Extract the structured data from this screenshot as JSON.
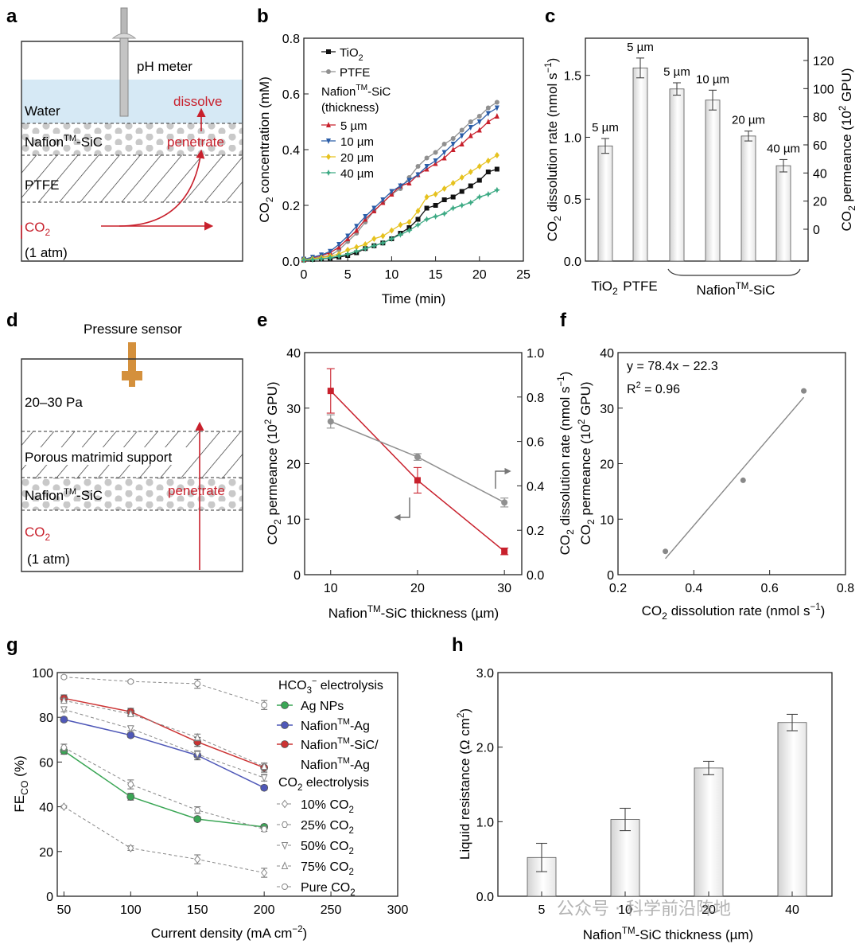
{
  "colors": {
    "red": "#c8202c",
    "black": "#111111",
    "gray": "#909090",
    "blue": "#2b5da8",
    "yellow": "#e6c21f",
    "green": "#3daa84",
    "water": "#d6e9f5",
    "sensor": "#d4903c",
    "agnps": "#3aa655",
    "nafionag": "#4f58b8",
    "nafionsic": "#cc3333"
  },
  "panels": {
    "a": {
      "letter": "a",
      "ph_meter": "pH meter",
      "water": "Water",
      "dissolve": "dissolve",
      "nafion_pre": "Nafion",
      "tm": "TM",
      "nafion_post": "-SiC",
      "penetrate": "penetrate",
      "ptfe": "PTFE",
      "co2": "CO",
      "sub2": "2",
      "atm": "(1 atm)"
    },
    "d": {
      "letter": "d",
      "sensor": "Pressure sensor",
      "pressure": "20–30 Pa",
      "support": "Porous matrimid support",
      "nafion_pre": "Nafion",
      "tm": "TM",
      "nafion_post": "-SiC",
      "penetrate": "penetrate",
      "co2": "CO",
      "sub2": "2",
      "atm": "(1 atm)"
    }
  },
  "chart_data": [
    {
      "panel": "b",
      "type": "line",
      "letter": "b",
      "xlabel": "Time (min)",
      "ylabel_pre": "CO",
      "ylabel_sub": "2",
      "ylabel_post": " concentration (mM)",
      "xlim": [
        0,
        25
      ],
      "ylim": [
        0,
        0.8
      ],
      "xticks": [
        "0",
        "5",
        "10",
        "15",
        "20",
        "25"
      ],
      "yticks": [
        "0.0",
        "0.2",
        "0.4",
        "0.6",
        "0.8"
      ],
      "legend_title": "Nafion",
      "legend_title_tm": "TM",
      "legend_title_post": "-SiC",
      "legend_title2": "(thickness)",
      "series": [
        {
          "name": "TiO",
          "sub": "2",
          "color": "#111111",
          "marker": "square",
          "x": [
            0,
            1,
            2,
            3,
            4,
            5,
            6,
            7,
            8,
            9,
            10,
            11,
            12,
            13,
            14,
            15,
            16,
            17,
            18,
            19,
            20,
            21,
            22
          ],
          "y": [
            0.004,
            0.006,
            0.008,
            0.01,
            0.014,
            0.02,
            0.03,
            0.045,
            0.055,
            0.065,
            0.08,
            0.1,
            0.12,
            0.15,
            0.19,
            0.2,
            0.22,
            0.23,
            0.25,
            0.27,
            0.29,
            0.32,
            0.33
          ]
        },
        {
          "name": "PTFE",
          "sub": "",
          "color": "#909090",
          "marker": "circle",
          "x": [
            0,
            1,
            2,
            3,
            4,
            5,
            6,
            7,
            8,
            9,
            10,
            11,
            12,
            13,
            14,
            15,
            16,
            17,
            18,
            19,
            20,
            21,
            22
          ],
          "y": [
            0.005,
            0.01,
            0.015,
            0.02,
            0.04,
            0.07,
            0.1,
            0.14,
            0.18,
            0.21,
            0.24,
            0.26,
            0.3,
            0.34,
            0.37,
            0.39,
            0.42,
            0.44,
            0.47,
            0.5,
            0.52,
            0.55,
            0.57
          ]
        },
        {
          "name": "5 µm",
          "sub": "",
          "color": "#c8202c",
          "marker": "triangle-up",
          "x": [
            0,
            1,
            2,
            3,
            4,
            5,
            6,
            7,
            8,
            9,
            10,
            11,
            12,
            13,
            14,
            15,
            16,
            17,
            18,
            19,
            20,
            21,
            22
          ],
          "y": [
            0.006,
            0.012,
            0.02,
            0.03,
            0.05,
            0.08,
            0.11,
            0.15,
            0.18,
            0.21,
            0.24,
            0.27,
            0.28,
            0.31,
            0.33,
            0.35,
            0.37,
            0.4,
            0.42,
            0.45,
            0.47,
            0.5,
            0.52
          ]
        },
        {
          "name": "10 µm",
          "sub": "",
          "color": "#2b5da8",
          "marker": "triangle-down",
          "x": [
            0,
            1,
            2,
            3,
            4,
            5,
            6,
            7,
            8,
            9,
            10,
            11,
            12,
            13,
            14,
            15,
            16,
            17,
            18,
            19,
            20,
            21,
            22
          ],
          "y": [
            0.007,
            0.014,
            0.022,
            0.035,
            0.06,
            0.09,
            0.125,
            0.16,
            0.19,
            0.22,
            0.25,
            0.27,
            0.29,
            0.31,
            0.34,
            0.36,
            0.39,
            0.42,
            0.45,
            0.48,
            0.5,
            0.53,
            0.55
          ]
        },
        {
          "name": "20 µm",
          "sub": "",
          "color": "#e6c21f",
          "marker": "diamond",
          "x": [
            0,
            1,
            2,
            3,
            4,
            5,
            6,
            7,
            8,
            9,
            10,
            11,
            12,
            13,
            14,
            15,
            16,
            17,
            18,
            19,
            20,
            21,
            22
          ],
          "y": [
            0.005,
            0.008,
            0.012,
            0.018,
            0.025,
            0.04,
            0.05,
            0.06,
            0.08,
            0.09,
            0.11,
            0.13,
            0.14,
            0.18,
            0.23,
            0.24,
            0.26,
            0.28,
            0.3,
            0.32,
            0.34,
            0.36,
            0.38
          ]
        },
        {
          "name": "40 µm",
          "sub": "",
          "color": "#3daa84",
          "marker": "star",
          "x": [
            0,
            1,
            2,
            3,
            4,
            5,
            6,
            7,
            8,
            9,
            10,
            11,
            12,
            13,
            14,
            15,
            16,
            17,
            18,
            19,
            20,
            21,
            22
          ],
          "y": [
            0.003,
            0.005,
            0.008,
            0.012,
            0.018,
            0.025,
            0.035,
            0.045,
            0.055,
            0.065,
            0.08,
            0.095,
            0.11,
            0.13,
            0.15,
            0.16,
            0.17,
            0.19,
            0.2,
            0.21,
            0.23,
            0.24,
            0.255
          ]
        }
      ]
    },
    {
      "panel": "c",
      "type": "bar",
      "letter": "c",
      "categories": [
        "TiO2",
        "PTFE",
        "5 µm",
        "10 µm",
        "20 µm",
        "40 µm"
      ],
      "values": [
        0.93,
        1.56,
        1.39,
        1.3,
        1.01,
        0.77
      ],
      "errors": [
        0.06,
        0.08,
        0.05,
        0.08,
        0.04,
        0.05
      ],
      "labels": [
        "5 µm",
        "5 µm",
        "5 µm",
        "10 µm",
        "20 µm",
        "40 µm"
      ],
      "ylim": [
        0,
        1.8
      ],
      "yticks": [
        "0.0",
        "0.5",
        "1.0",
        "1.5"
      ],
      "y2ticks": [
        "0",
        "20",
        "40",
        "60",
        "80",
        "100",
        "120"
      ],
      "ylabel_pre": "CO",
      "ylabel_sub": "2",
      "ylabel_mid": " dissolution rate (nmol s",
      "ylabel_sup": "−1",
      "ylabel_end": ")",
      "y2label_pre": "CO",
      "y2label_sub": "2",
      "y2label_mid": " permeance (10",
      "y2label_sup": "2",
      "y2label_end": " GPU)",
      "xcat_tio": "TiO",
      "xcat_tio_sub": "2",
      "xcat_ptfe": "PTFE",
      "group_pre": "Nafion",
      "group_tm": "TM",
      "group_post": "-SiC"
    },
    {
      "panel": "e",
      "type": "line",
      "letter": "e",
      "xlabel_pre": "Nafion",
      "xlabel_tm": "TM",
      "xlabel_post": "-SiC thickness (µm)",
      "xlim": [
        7,
        32
      ],
      "ylim": [
        0,
        40
      ],
      "y2lim": [
        0,
        1
      ],
      "xticks": [
        "10",
        "20",
        "30"
      ],
      "yticks": [
        "0",
        "10",
        "20",
        "30",
        "40"
      ],
      "y2ticks": [
        "0.0",
        "0.2",
        "0.4",
        "0.6",
        "0.8",
        "1.0"
      ],
      "ylabel_pre": "CO",
      "ylabel_sub": "2",
      "ylabel_mid": " permeance (10",
      "ylabel_sup": "2",
      "ylabel_end": " GPU)",
      "y2label_pre": "CO",
      "y2label_sub": "2",
      "y2label_mid": " dissolution rate (nmol s",
      "y2label_sup": "−1",
      "y2label_end": ")",
      "series": [
        {
          "name": "permeance",
          "axis": "left",
          "color": "#c8202c",
          "x": [
            10,
            20,
            30
          ],
          "y": [
            33.1,
            17.0,
            4.2
          ],
          "err": [
            4.0,
            2.3,
            0.6
          ]
        },
        {
          "name": "dissolution rate",
          "axis": "right",
          "color": "#909090",
          "x": [
            10,
            20,
            30
          ],
          "y": [
            0.69,
            0.53,
            0.325
          ],
          "err": [
            0.03,
            0.015,
            0.02
          ]
        }
      ]
    },
    {
      "panel": "f",
      "type": "scatter",
      "letter": "f",
      "xlim": [
        0.2,
        0.8
      ],
      "ylim": [
        0,
        40
      ],
      "xticks": [
        "0.2",
        "0.4",
        "0.6",
        "0.8"
      ],
      "yticks": [
        "0",
        "10",
        "20",
        "30",
        "40"
      ],
      "x": [
        0.325,
        0.53,
        0.69
      ],
      "y": [
        4.2,
        17.0,
        33.1
      ],
      "fit": {
        "slope": 78.4,
        "intercept": -22.3
      },
      "equation": "y = 78.4x − 22.3",
      "r2_pre": "R",
      "r2_sup": "2",
      "r2_post": " = 0.96",
      "xlabel_pre": "CO",
      "xlabel_sub": "2",
      "xlabel_mid": " dissolution rate (nmol s",
      "xlabel_sup": "−1",
      "xlabel_end": ")",
      "ylabel_pre": "CO",
      "ylabel_sub": "2",
      "ylabel_mid": " permeance (10",
      "ylabel_sup": "2",
      "ylabel_end": " GPU)"
    },
    {
      "panel": "g",
      "type": "line",
      "letter": "g",
      "xlabel_pre": "Current density (mA cm",
      "xlabel_sup": "−2",
      "xlabel_end": ")",
      "ylabel_pre": "FE",
      "ylabel_sub": "CO",
      "ylabel_end": " (%)",
      "xlim": [
        45,
        300
      ],
      "ylim": [
        0,
        100
      ],
      "xticks": [
        "50",
        "100",
        "150",
        "200",
        "250",
        "300"
      ],
      "yticks": [
        "0",
        "20",
        "40",
        "60",
        "80",
        "100"
      ],
      "legend_head1_pre": "HCO",
      "legend_head1_sub": "3",
      "legend_head1_sup": "−",
      "legend_head1_post": " electrolysis",
      "legend_head2_pre": "CO",
      "legend_head2_sub": "2",
      "legend_head2_post": " electrolysis",
      "series": [
        {
          "name_pre": "Ag NPs",
          "name_tm": "",
          "name_post": "",
          "name2": "",
          "style": "solid",
          "color": "#3aa655",
          "marker": "circle-filled",
          "x": [
            50,
            100,
            150,
            200
          ],
          "y": [
            65,
            44.5,
            34.5,
            31
          ],
          "err": [
            1.5,
            1.5,
            1,
            1
          ]
        },
        {
          "name_pre": "Nafion",
          "name_tm": "TM",
          "name_post": "-Ag",
          "name2": "",
          "style": "solid",
          "color": "#4f58b8",
          "marker": "circle-filled",
          "x": [
            50,
            100,
            150,
            200
          ],
          "y": [
            79,
            72,
            63,
            48.5
          ],
          "err": [
            1,
            1,
            2,
            1
          ]
        },
        {
          "name_pre": "Nafion",
          "name_tm": "TM",
          "name_post": "-SiC/",
          "name2": "Nafion-Ag",
          "style": "solid",
          "color": "#cc3333",
          "marker": "circle-filled",
          "x": [
            50,
            100,
            150,
            200
          ],
          "y": [
            88.5,
            82.5,
            69,
            57.5
          ],
          "err": [
            1.5,
            1.5,
            2,
            2
          ]
        },
        {
          "name_pre": "10% CO",
          "name_sub": "2",
          "style": "dashed",
          "color": "#888888",
          "marker": "diamond-open",
          "x": [
            50,
            100,
            150,
            200
          ],
          "y": [
            40,
            21.5,
            16.5,
            10.5
          ],
          "err": [
            0.5,
            1,
            2,
            2
          ]
        },
        {
          "name_pre": "25% CO",
          "name_sub": "2",
          "style": "dashed",
          "color": "#888888",
          "marker": "hex-open",
          "x": [
            50,
            100,
            150,
            200
          ],
          "y": [
            66.5,
            50,
            38.5,
            30
          ],
          "err": [
            1.5,
            2,
            1.5,
            1
          ]
        },
        {
          "name_pre": "50% CO",
          "name_sub": "2",
          "style": "dashed",
          "color": "#888888",
          "marker": "tri-down-open",
          "x": [
            50,
            100,
            150,
            200
          ],
          "y": [
            83.5,
            75,
            63.5,
            53
          ],
          "err": [
            1,
            1,
            1.5,
            1.5
          ]
        },
        {
          "name_pre": "75% CO",
          "name_sub": "2",
          "style": "dashed",
          "color": "#888888",
          "marker": "tri-up-open",
          "x": [
            50,
            100,
            150,
            200
          ],
          "y": [
            87.5,
            81.5,
            71,
            58
          ],
          "err": [
            1,
            1,
            1.5,
            1.5
          ]
        },
        {
          "name_pre": "Pure CO",
          "name_sub": "2",
          "style": "dashed",
          "color": "#888888",
          "marker": "circle-open",
          "x": [
            50,
            100,
            150,
            200
          ],
          "y": [
            98,
            96,
            95,
            85.5
          ],
          "err": [
            0.5,
            0.5,
            2,
            2
          ]
        }
      ]
    },
    {
      "panel": "h",
      "type": "bar",
      "letter": "h",
      "categories": [
        "5",
        "10",
        "20",
        "40"
      ],
      "values": [
        0.52,
        1.03,
        1.72,
        2.33
      ],
      "errors": [
        0.19,
        0.15,
        0.09,
        0.11
      ],
      "ylim": [
        0,
        3.0
      ],
      "yticks": [
        "0.0",
        "1.0",
        "2.0",
        "3.0"
      ],
      "ylabel_pre": "Liquid resistance (Ω cm",
      "ylabel_sup": "2",
      "ylabel_end": ")",
      "xlabel_pre": "Nafion",
      "xlabel_tm": "TM",
      "xlabel_post": "-SiC thickness (µm)"
    }
  ],
  "watermark": "公众号 · 科学前沿阵地"
}
